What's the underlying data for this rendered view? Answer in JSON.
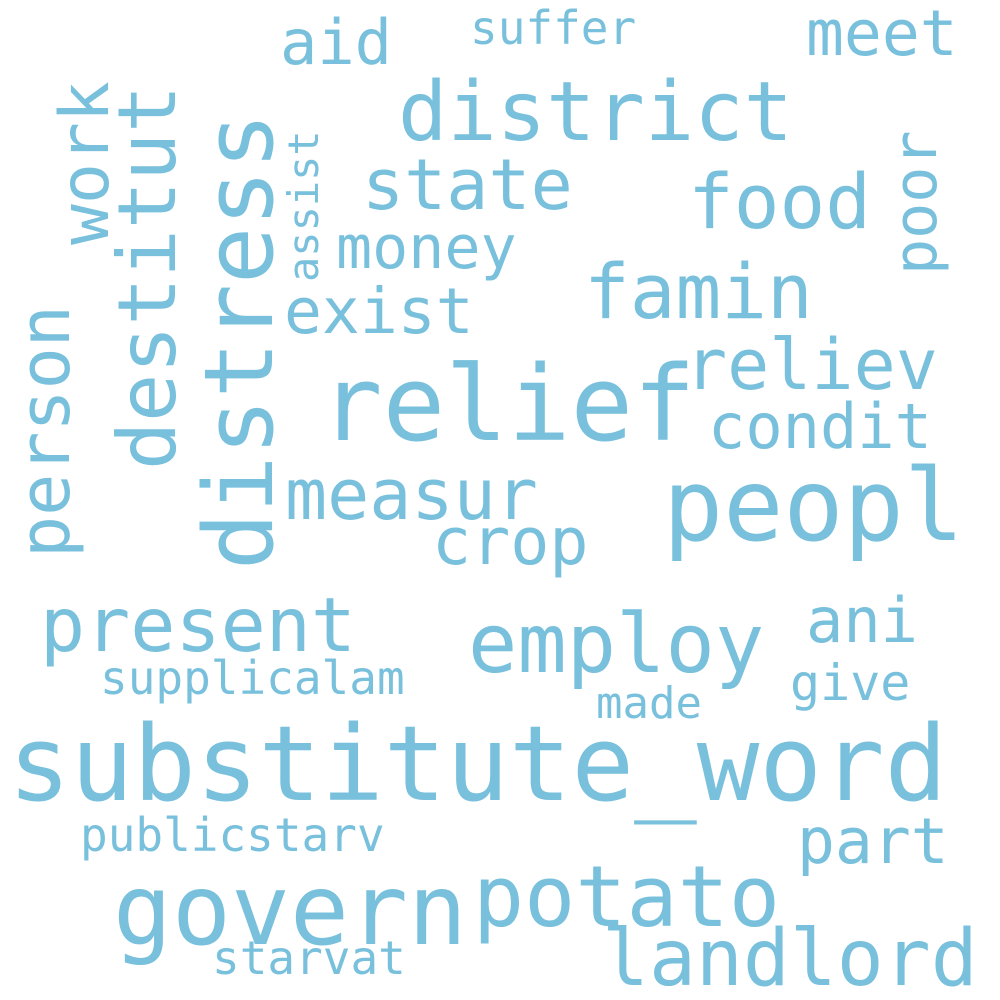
{
  "colors": {
    "background": "#ffffff",
    "word": "#78c0dc"
  },
  "words": [
    {
      "id": "substitute_word",
      "text": "substitute_word",
      "weight": 1.0,
      "vertical": false
    },
    {
      "id": "relief",
      "text": "relief",
      "weight": 0.95,
      "vertical": false
    },
    {
      "id": "peopl",
      "text": "peopl",
      "weight": 0.93,
      "vertical": false
    },
    {
      "id": "distress",
      "text": "distress",
      "weight": 0.92,
      "vertical": true
    },
    {
      "id": "govern",
      "text": "govern",
      "weight": 0.9,
      "vertical": false
    },
    {
      "id": "potato",
      "text": "potato",
      "weight": 0.85,
      "vertical": false
    },
    {
      "id": "employ",
      "text": "employ",
      "weight": 0.8,
      "vertical": false
    },
    {
      "id": "district",
      "text": "district",
      "weight": 0.78,
      "vertical": false
    },
    {
      "id": "food",
      "text": "food",
      "weight": 0.77,
      "vertical": false
    },
    {
      "id": "famin",
      "text": "famin",
      "weight": 0.76,
      "vertical": false
    },
    {
      "id": "destitut",
      "text": "destitut",
      "weight": 0.75,
      "vertical": true
    },
    {
      "id": "landlord",
      "text": "landlord",
      "weight": 0.74,
      "vertical": false
    },
    {
      "id": "present",
      "text": "present",
      "weight": 0.73,
      "vertical": false
    },
    {
      "id": "measur",
      "text": "measur",
      "weight": 0.72,
      "vertical": false
    },
    {
      "id": "work",
      "text": "work",
      "weight": 0.71,
      "vertical": true
    },
    {
      "id": "person",
      "text": "person",
      "weight": 0.7,
      "vertical": true
    },
    {
      "id": "reliev",
      "text": "reliev",
      "weight": 0.69,
      "vertical": false
    },
    {
      "id": "state",
      "text": "state",
      "weight": 0.68,
      "vertical": false
    },
    {
      "id": "crop",
      "text": "crop",
      "weight": 0.66,
      "vertical": false
    },
    {
      "id": "exist",
      "text": "exist",
      "weight": 0.65,
      "vertical": false
    },
    {
      "id": "poor",
      "text": "poor",
      "weight": 0.64,
      "vertical": true
    },
    {
      "id": "money",
      "text": "money",
      "weight": 0.6,
      "vertical": false
    },
    {
      "id": "condit",
      "text": "condit",
      "weight": 0.6,
      "vertical": false
    },
    {
      "id": "part",
      "text": "part",
      "weight": 0.59,
      "vertical": false
    },
    {
      "id": "meet",
      "text": "meet",
      "weight": 0.58,
      "vertical": false
    },
    {
      "id": "ani",
      "text": "ani",
      "weight": 0.57,
      "vertical": false
    },
    {
      "id": "aid",
      "text": "aid",
      "weight": 0.56,
      "vertical": false
    },
    {
      "id": "give",
      "text": "give",
      "weight": 0.45,
      "vertical": false
    },
    {
      "id": "supplicalam",
      "text": "supplicalam",
      "weight": 0.44,
      "vertical": false
    },
    {
      "id": "publicstarv",
      "text": "publicstarv",
      "weight": 0.44,
      "vertical": false
    },
    {
      "id": "starvat",
      "text": "starvat",
      "weight": 0.43,
      "vertical": false
    },
    {
      "id": "suffer",
      "text": "suffer",
      "weight": 0.43,
      "vertical": false
    },
    {
      "id": "made",
      "text": "made",
      "weight": 0.4,
      "vertical": false
    },
    {
      "id": "assist",
      "text": "assist",
      "weight": 0.39,
      "vertical": true
    }
  ]
}
